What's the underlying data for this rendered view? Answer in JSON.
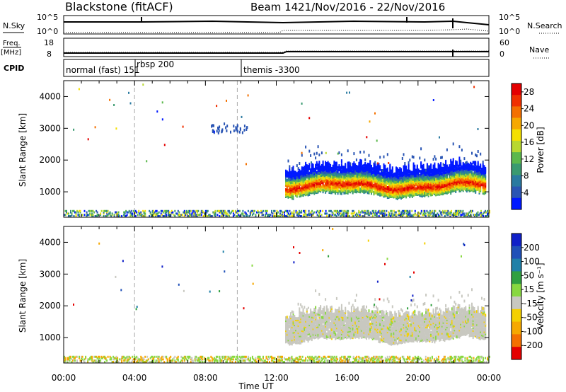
{
  "header": {
    "title": "Blackstone (fitACF)",
    "beam": "Beam 14",
    "date_range": "21/Nov/2016 - 22/Nov/2016"
  },
  "strips": {
    "nsky_label": "N.Sky",
    "nsky_ticks": [
      "10^5",
      "10^0"
    ],
    "nsearch_label": "N.Search",
    "nsearch_ticks": [
      "10^5",
      "10^0"
    ],
    "freq_label_top": "Freq.",
    "freq_label_unit": "[MHz]",
    "freq_ticks": [
      "18",
      "8"
    ],
    "nave_label": "Nave",
    "nave_ticks": [
      "60",
      "0"
    ],
    "cpid_label": "CPID",
    "cpid_segments": [
      {
        "label": "normal (fast) 151",
        "start_h": 0
      },
      {
        "label": "rbsp 200",
        "start_h": 4.0
      },
      {
        "label": "themis -3300",
        "start_h": 9.8
      }
    ]
  },
  "colors": {
    "power": [
      "#0018ff",
      "#2a55b4",
      "#2a7aa0",
      "#3a9a70",
      "#5cb84c",
      "#b8d830",
      "#f4e000",
      "#f6a800",
      "#f47000",
      "#f03000",
      "#e40000"
    ],
    "velocity": [
      "#e40000",
      "#f47000",
      "#f6a800",
      "#f4d000",
      "#c8c8c0",
      "#88d840",
      "#30a040",
      "#2080a8",
      "#2050b8",
      "#1020c8"
    ]
  },
  "chart_data": [
    {
      "type": "heatmap",
      "title": "Power",
      "xlabel": "",
      "ylabel": "Slant Range [km]",
      "xlim": [
        0,
        24
      ],
      "ylim": [
        200,
        4500
      ],
      "x_tick_labels": [
        "00:00",
        "04:00",
        "08:00",
        "12:00",
        "16:00",
        "20:00",
        "00:00"
      ],
      "y_ticks": [
        1000,
        2000,
        3000,
        4000
      ],
      "colorbar_label": "Power [dB]",
      "colorbar_ticks": [
        4,
        8,
        12,
        16,
        20,
        24,
        28
      ],
      "colorbar_range": [
        0,
        30
      ],
      "features": [
        {
          "name": "ground scatter band",
          "t_start": 0,
          "t_end": 24,
          "range_min": 200,
          "range_max": 400
        },
        {
          "name": "ionospheric scatter band",
          "t_start": 12.5,
          "t_end": 23.8,
          "range_min": 800,
          "range_max": 2000
        },
        {
          "name": "scattered echoes",
          "t_start": 8.3,
          "t_end": 10.5,
          "range_min": 2800,
          "range_max": 3100
        }
      ]
    },
    {
      "type": "heatmap",
      "title": "Velocity",
      "xlabel": "Time UT",
      "ylabel": "Slant Range [km]",
      "xlim": [
        0,
        24
      ],
      "ylim": [
        200,
        4500
      ],
      "x_tick_labels": [
        "00:00",
        "04:00",
        "08:00",
        "12:00",
        "16:00",
        "20:00",
        "00:00"
      ],
      "y_ticks": [
        1000,
        2000,
        3000,
        4000
      ],
      "colorbar_label": "Velocity [m s⁻¹]",
      "colorbar_ticks": [
        200,
        100,
        50,
        15,
        -15,
        -50,
        -100,
        -200
      ],
      "colorbar_range": [
        -250,
        250
      ],
      "features": [
        {
          "name": "ground scatter band",
          "t_start": 0,
          "t_end": 24,
          "range_min": 200,
          "range_max": 400
        },
        {
          "name": "low-velocity ionospheric scatter",
          "t_start": 12.5,
          "t_end": 23.8,
          "range_min": 800,
          "range_max": 2000
        }
      ]
    }
  ]
}
